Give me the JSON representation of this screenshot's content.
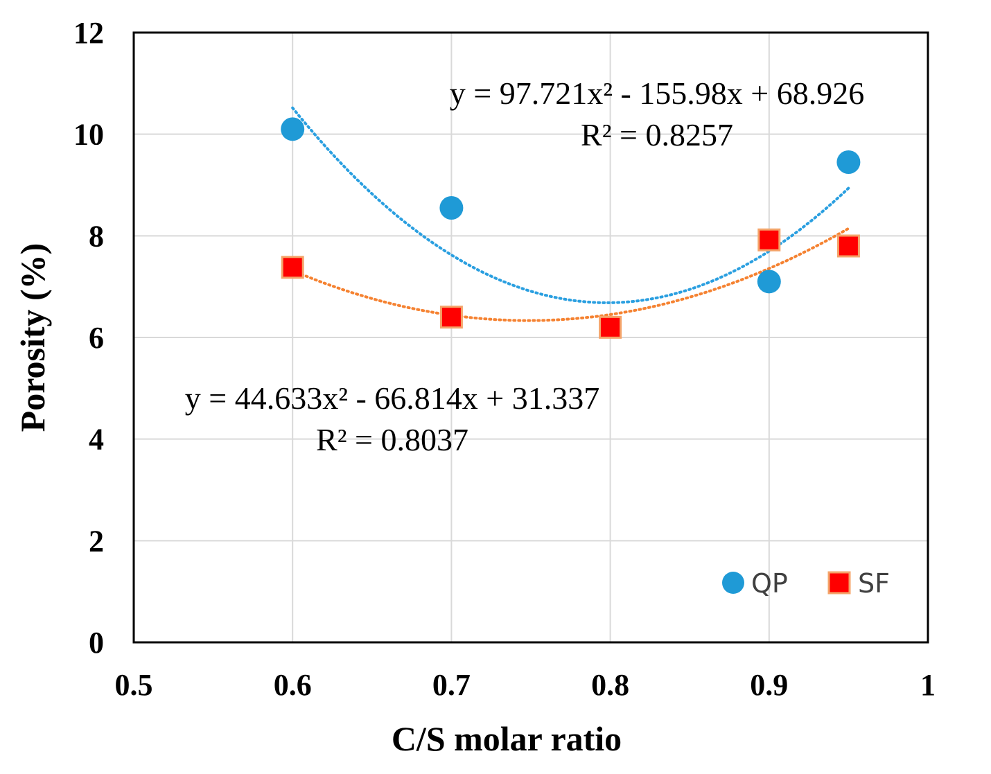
{
  "chart_data": {
    "type": "scatter",
    "title": "",
    "xlabel": "C/S molar ratio",
    "ylabel": "Porosity (%)",
    "xlim": [
      0.5,
      1
    ],
    "ylim": [
      0,
      12
    ],
    "xticks": [
      0.5,
      0.6,
      0.7,
      0.8,
      0.9,
      1
    ],
    "yticks": [
      0,
      2,
      4,
      6,
      8,
      10,
      12
    ],
    "xtick_labels": [
      "0.5",
      "0.6",
      "0.7",
      "0.8",
      "0.9",
      "1"
    ],
    "ytick_labels": [
      "0",
      "2",
      "4",
      "6",
      "8",
      "10",
      "12"
    ],
    "grid": true,
    "legend_position": "bottom-right",
    "series": [
      {
        "name": "QP",
        "marker": "circle",
        "color": "#1f9ad6",
        "trend_color": "#2a9fe0",
        "x": [
          0.6,
          0.7,
          0.9,
          0.95
        ],
        "y": [
          10.1,
          8.55,
          7.1,
          9.45
        ],
        "trendline": {
          "type": "poly2",
          "a": 97.721,
          "b": -155.98,
          "c": 68.926,
          "x_range": [
            0.6,
            0.95
          ]
        },
        "equation_label": "y = 97.721x² - 155.98x + 68.926",
        "r2_label": "R² = 0.8257"
      },
      {
        "name": "SF",
        "marker": "square",
        "color": "#ff0000",
        "edge_color": "#f4a46a",
        "trend_color": "#f58231",
        "x": [
          0.6,
          0.7,
          0.8,
          0.9,
          0.95
        ],
        "y": [
          7.38,
          6.4,
          6.2,
          7.92,
          7.8
        ],
        "trendline": {
          "type": "poly2",
          "a": 44.633,
          "b": -66.814,
          "c": 31.337,
          "x_range": [
            0.6,
            0.95
          ]
        },
        "equation_label": "y = 44.633x² - 66.814x + 31.337",
        "r2_label": "R² = 0.8037"
      }
    ]
  }
}
